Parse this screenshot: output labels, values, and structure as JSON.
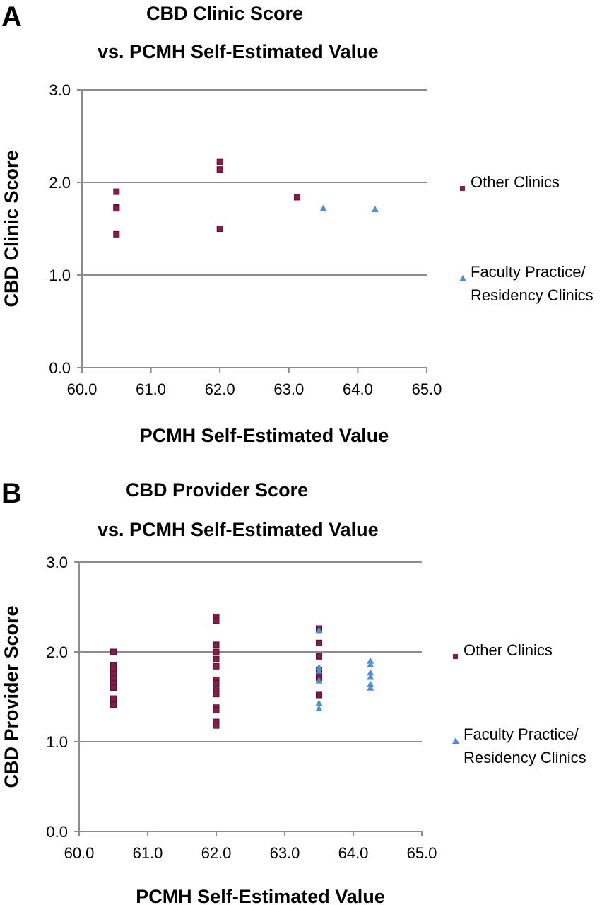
{
  "chart_data": [
    {
      "panel": "A",
      "type": "scatter",
      "title": "CBD Clinic Score",
      "subtitle": "vs. PCMH Self-Estimated Value",
      "xlabel": "PCMH Self-Estimated Value",
      "ylabel": "CBD Clinic Score",
      "xlim": [
        60.0,
        65.0
      ],
      "ylim": [
        0.0,
        3.0
      ],
      "xticks": [
        "60.0",
        "61.0",
        "62.0",
        "63.0",
        "64.0",
        "65.0"
      ],
      "yticks": [
        "0.0",
        "1.0",
        "2.0",
        "3.0"
      ],
      "grid": "horizontal",
      "legend_position": "right",
      "series": [
        {
          "name": "Other Clinics",
          "marker": "square",
          "color": "#8b1a4a",
          "points": [
            {
              "x": 60.5,
              "y": 1.9
            },
            {
              "x": 60.5,
              "y": 1.73
            },
            {
              "x": 60.5,
              "y": 1.72
            },
            {
              "x": 60.5,
              "y": 1.44
            },
            {
              "x": 62.0,
              "y": 2.22
            },
            {
              "x": 62.0,
              "y": 2.14
            },
            {
              "x": 62.0,
              "y": 1.5
            },
            {
              "x": 63.12,
              "y": 1.84
            }
          ]
        },
        {
          "name": "Faculty Practice/ Residency Clinics",
          "name_lines": [
            "Faculty Practice/",
            "Residency Clinics"
          ],
          "marker": "triangle",
          "color": "#4a8fe0",
          "points": [
            {
              "x": 63.5,
              "y": 1.72
            },
            {
              "x": 64.25,
              "y": 1.71
            }
          ]
        }
      ]
    },
    {
      "panel": "B",
      "type": "scatter",
      "title": "CBD Provider Score",
      "subtitle": "vs. PCMH Self-Estimated Value",
      "xlabel": "PCMH Self-Estimated Value",
      "ylabel": "CBD Provider Score",
      "xlim": [
        60.0,
        65.0
      ],
      "ylim": [
        0.0,
        3.0
      ],
      "xticks": [
        "60.0",
        "61.0",
        "62.0",
        "63.0",
        "64.0",
        "65.0"
      ],
      "yticks": [
        "0.0",
        "1.0",
        "2.0",
        "3.0"
      ],
      "grid": "horizontal",
      "legend_position": "right",
      "series": [
        {
          "name": "Other Clinics",
          "marker": "square",
          "color": "#8b1a4a",
          "points": [
            {
              "x": 60.5,
              "y": 2.0
            },
            {
              "x": 60.5,
              "y": 1.85
            },
            {
              "x": 60.5,
              "y": 1.8
            },
            {
              "x": 60.5,
              "y": 1.75
            },
            {
              "x": 60.5,
              "y": 1.7
            },
            {
              "x": 60.5,
              "y": 1.65
            },
            {
              "x": 60.5,
              "y": 1.6
            },
            {
              "x": 60.5,
              "y": 1.48
            },
            {
              "x": 60.5,
              "y": 1.41
            },
            {
              "x": 62.0,
              "y": 2.39
            },
            {
              "x": 62.0,
              "y": 2.35
            },
            {
              "x": 62.0,
              "y": 2.08
            },
            {
              "x": 62.0,
              "y": 2.0
            },
            {
              "x": 62.0,
              "y": 1.92
            },
            {
              "x": 62.0,
              "y": 1.84
            },
            {
              "x": 62.0,
              "y": 1.69
            },
            {
              "x": 62.0,
              "y": 1.65
            },
            {
              "x": 62.0,
              "y": 1.57
            },
            {
              "x": 62.0,
              "y": 1.53
            },
            {
              "x": 62.0,
              "y": 1.38
            },
            {
              "x": 62.0,
              "y": 1.35
            },
            {
              "x": 62.0,
              "y": 1.22
            },
            {
              "x": 62.0,
              "y": 1.18
            },
            {
              "x": 63.5,
              "y": 2.26
            },
            {
              "x": 63.5,
              "y": 2.1
            },
            {
              "x": 63.5,
              "y": 1.95
            },
            {
              "x": 63.5,
              "y": 1.8
            },
            {
              "x": 63.5,
              "y": 1.75
            },
            {
              "x": 63.5,
              "y": 1.71
            },
            {
              "x": 63.5,
              "y": 1.52
            }
          ]
        },
        {
          "name": "Faculty Practice/ Residency Clinics",
          "name_lines": [
            "Faculty Practice/",
            "Residency Clinics"
          ],
          "marker": "triangle",
          "color": "#4a8fe0",
          "points": [
            {
              "x": 63.5,
              "y": 2.24
            },
            {
              "x": 63.5,
              "y": 1.83
            },
            {
              "x": 63.5,
              "y": 1.79
            },
            {
              "x": 63.5,
              "y": 1.68
            },
            {
              "x": 63.5,
              "y": 1.43
            },
            {
              "x": 63.5,
              "y": 1.37
            },
            {
              "x": 64.25,
              "y": 1.9
            },
            {
              "x": 64.25,
              "y": 1.86
            },
            {
              "x": 64.25,
              "y": 1.77
            },
            {
              "x": 64.25,
              "y": 1.72
            },
            {
              "x": 64.25,
              "y": 1.64
            },
            {
              "x": 64.25,
              "y": 1.6
            }
          ]
        }
      ]
    }
  ]
}
